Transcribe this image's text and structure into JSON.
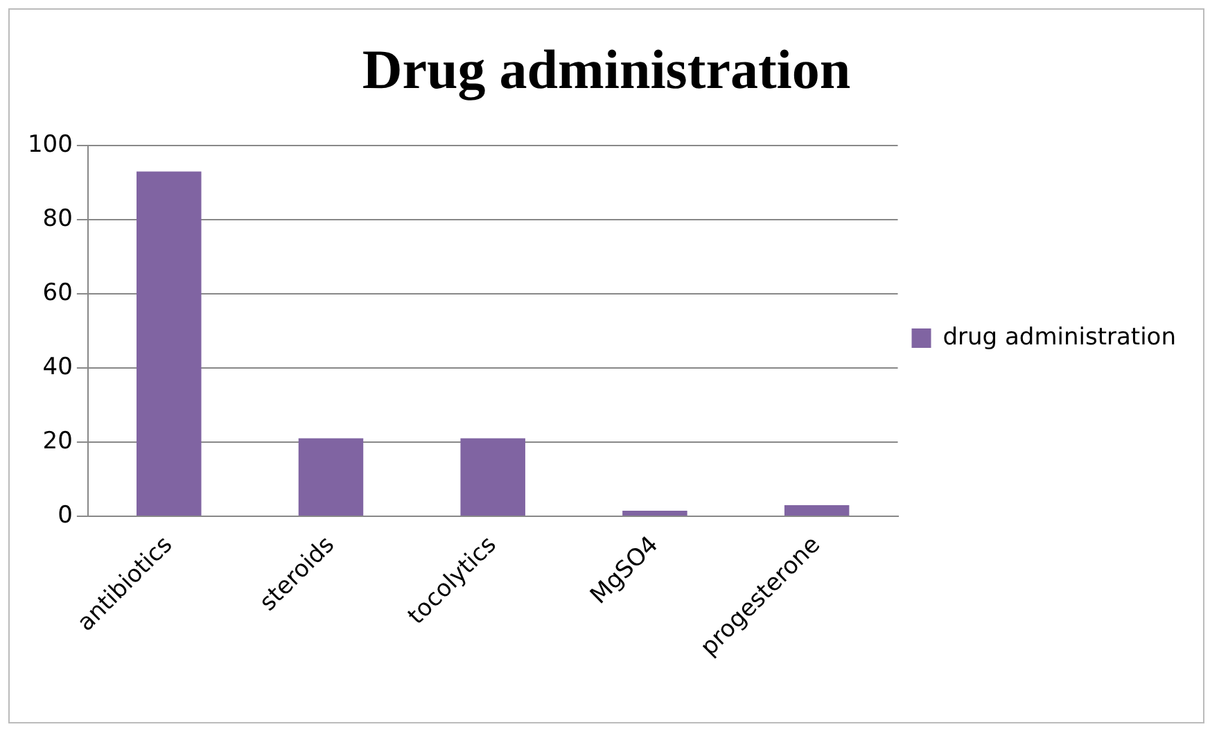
{
  "chart_data": {
    "type": "bar",
    "title": "Drug administration",
    "categories": [
      "antibiotics",
      "steroids",
      "tocolytics",
      "MgSO4",
      "progesterone"
    ],
    "series": [
      {
        "name": "drug administration",
        "color": "#8064a2",
        "values": [
          93,
          21,
          21,
          1.5,
          3
        ]
      }
    ],
    "ylim": [
      0,
      100
    ],
    "yticks": [
      0,
      20,
      40,
      60,
      80,
      100
    ],
    "grid": "y",
    "legend": "right"
  }
}
